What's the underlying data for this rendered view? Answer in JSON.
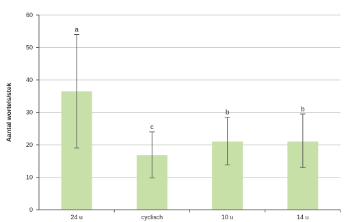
{
  "chart_data": {
    "type": "bar",
    "categories": [
      "24 u",
      "cyclisch",
      "10 u",
      "14 u"
    ],
    "values": [
      36.5,
      16.8,
      21.0,
      21.0
    ],
    "error_low": [
      19.0,
      9.8,
      13.8,
      13.0
    ],
    "error_high": [
      54.0,
      24.0,
      28.5,
      29.5
    ],
    "annotations": [
      "a",
      "c",
      "b",
      "b"
    ],
    "title": "",
    "xlabel": "",
    "ylabel": "Aantal wortels/stek",
    "ylim": [
      0,
      60
    ],
    "yticks": [
      0,
      10,
      20,
      30,
      40,
      50,
      60
    ],
    "grid": true,
    "colors": {
      "bar": "#c7e0a8",
      "grid": "#cfcfcf",
      "axis": "#555555",
      "error": "#555555"
    }
  }
}
